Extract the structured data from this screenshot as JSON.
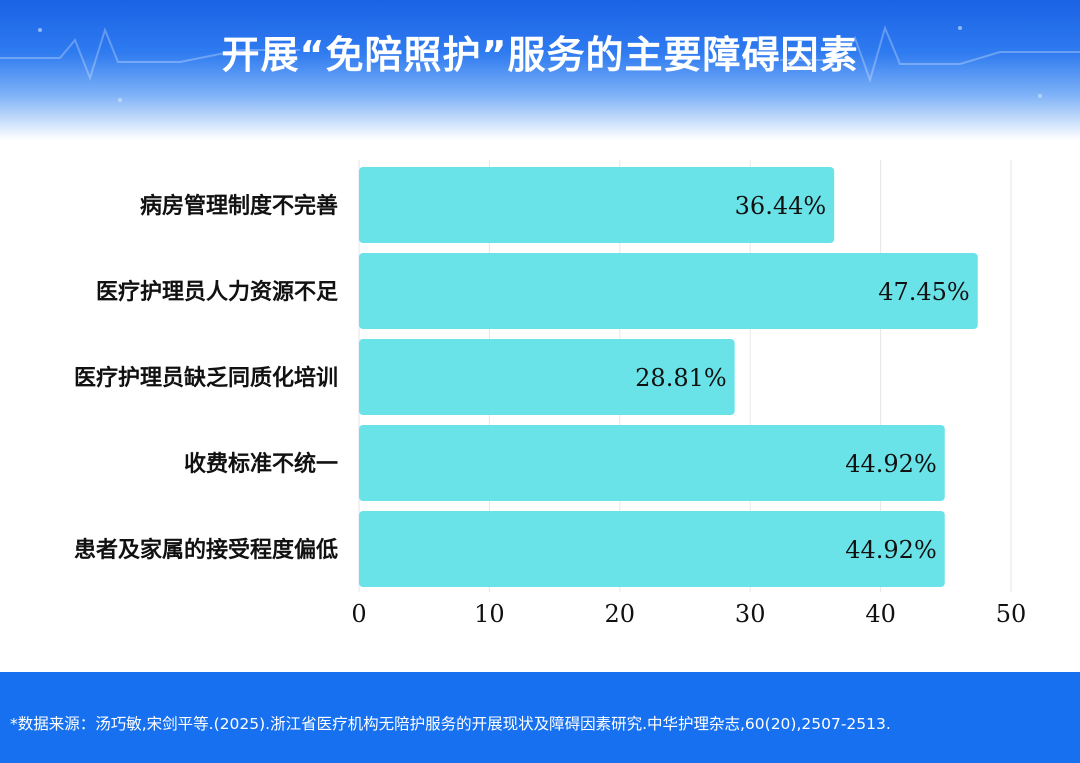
{
  "header": {
    "title": "开展“免陪照护”服务的主要障碍因素"
  },
  "chart_data": {
    "type": "bar",
    "orientation": "horizontal",
    "categories": [
      "病房管理制度不完善",
      "医疗护理员人力资源不足",
      "医疗护理员缺乏同质化培训",
      "收费标准不统一",
      "患者及家属的接受程度偏低"
    ],
    "values": [
      36.44,
      47.45,
      28.81,
      44.92,
      44.92
    ],
    "value_labels": [
      "36.44%",
      "47.45%",
      "28.81%",
      "44.92%",
      "44.92%"
    ],
    "xlim": [
      0,
      50
    ],
    "xticks": [
      0,
      10,
      20,
      30,
      40,
      50
    ],
    "tick_labels": [
      "0",
      "10",
      "20",
      "30",
      "40",
      "50"
    ],
    "grid": true,
    "legend": "none",
    "bar_color": "#6ae3e8",
    "title": "开展“免陪照护”服务的主要障碍因素"
  },
  "footer": {
    "source": "*数据来源：汤巧敏,宋剑平等.(2025).浙江省医疗机构无陪护服务的开展现状及障碍因素研究.中华护理杂志,60(20),2507-2513."
  }
}
